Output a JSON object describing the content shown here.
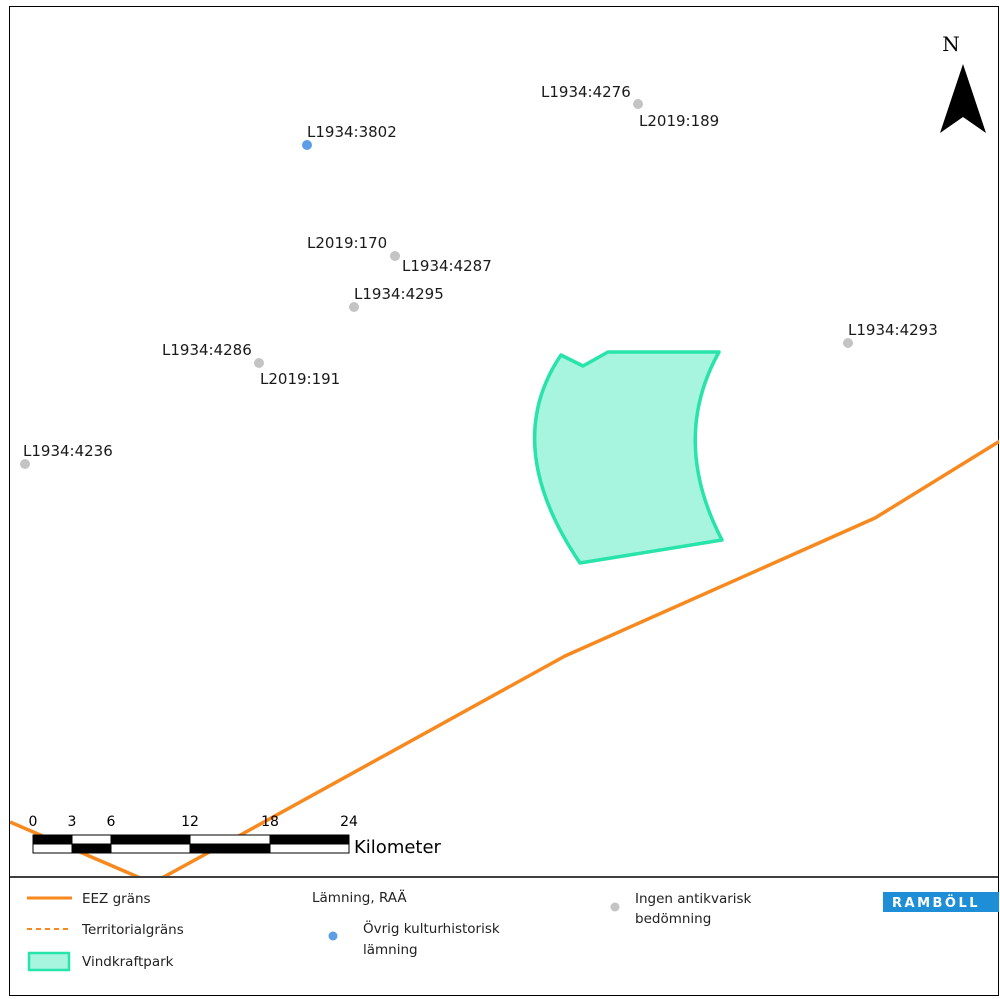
{
  "map": {
    "north_label": "N",
    "sites": [
      {
        "label": "L1934:3802",
        "category": "ovrig"
      },
      {
        "label": "L1934:4276",
        "category": "ingen"
      },
      {
        "label": "L2019:189",
        "category": "ingen"
      },
      {
        "label": "L2019:170",
        "category": "ingen"
      },
      {
        "label": "L1934:4287",
        "category": "ingen"
      },
      {
        "label": "L1934:4295",
        "category": "ingen"
      },
      {
        "label": "L1934:4286",
        "category": "ingen"
      },
      {
        "label": "L2019:191",
        "category": "ingen"
      },
      {
        "label": "L1934:4236",
        "category": "ingen"
      },
      {
        "label": "L1934:4293",
        "category": "ingen"
      }
    ],
    "scale_bar": {
      "ticks": [
        "0",
        "3",
        "6",
        "12",
        "18",
        "24"
      ],
      "unit": "Kilometer"
    }
  },
  "legend": {
    "eez": "EEZ gräns",
    "territorial": "Territorialgräns",
    "vindkraftpark": "Vindkraftpark",
    "lamning_title": "Lämning, RAÄ",
    "ovrig_line1": "Övrig kulturhistorisk",
    "ovrig_line2": "lämning",
    "ingen_line1": "Ingen antikvarisk",
    "ingen_line2": "bedömning",
    "logo": "RAMBÖLL"
  },
  "colors": {
    "eez_line": "#f7891f",
    "territorial_line": "#f7891f",
    "windpark_fill": "#a7f5df",
    "windpark_stroke": "#28e3aa",
    "site_ovrig": "#5b9ee6",
    "site_ingen": "#c4c4c4",
    "logo_bg": "#1e8fd6"
  },
  "icons": {
    "north": "north-arrow-icon",
    "ovrig_marker": "blue-dot-icon",
    "ingen_marker": "grey-dot-icon",
    "windpark_swatch": "windpark-swatch-icon"
  }
}
